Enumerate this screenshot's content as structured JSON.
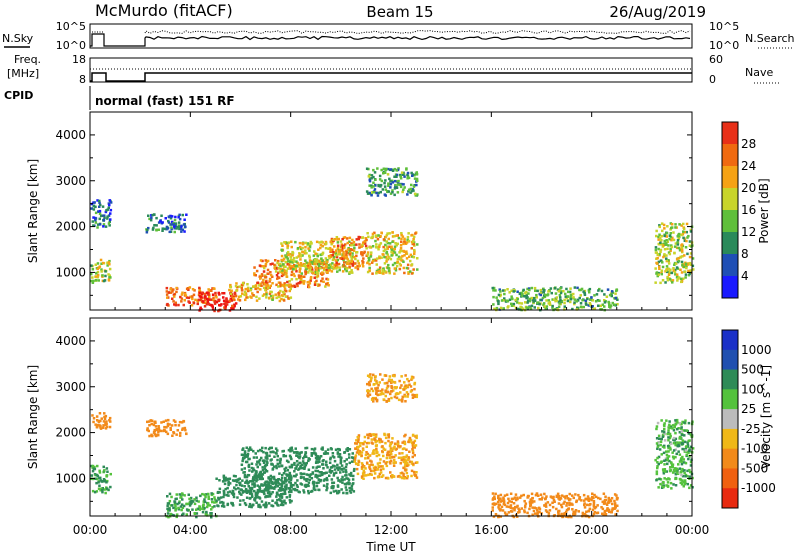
{
  "header": {
    "station": "McMurdo (fitACF)",
    "beam": "Beam 15",
    "date": "26/Aug/2019"
  },
  "noise_panel": {
    "left_label": "N.Sky",
    "right_label": "N.Search",
    "left_ticks": [
      "10^5",
      "10^0"
    ],
    "right_ticks": [
      "10^5",
      "10^0"
    ]
  },
  "freq_panel": {
    "left_label_line1": "Freq.",
    "left_label_line2": "[MHz]",
    "right_label": "Nave",
    "left_ticks": [
      "18",
      "8"
    ],
    "right_ticks": [
      "60",
      "0"
    ]
  },
  "cpid": {
    "label": "CPID",
    "text": "normal (fast) 151 RF"
  },
  "colors": {
    "power_scale": [
      "#1a1aff",
      "#1f4fb5",
      "#2a8a5a",
      "#5fbf3a",
      "#c8d42a",
      "#f5a214",
      "#f06a10",
      "#e83018",
      "#ee1010"
    ],
    "velocity_scale": [
      "#1a30c8",
      "#2050b0",
      "#2e8b57",
      "#54c23c",
      "#bcbcbc",
      "#f0b818",
      "#f28a1a",
      "#f06010",
      "#e82a10"
    ]
  },
  "chart_data": [
    {
      "type": "heatmap",
      "name": "Power",
      "ylabel": "Slant Range [km]",
      "yticks": [
        1000,
        2000,
        3000,
        4000
      ],
      "ylim": [
        180,
        4500
      ],
      "xlim": [
        0,
        24
      ],
      "colorbar_label": "Power [dB]",
      "colorbar_ticks": [
        "4",
        "8",
        "12",
        "16",
        "20",
        "24",
        "28"
      ],
      "colorbar_range": [
        0,
        30
      ],
      "patches": [
        {
          "x": [
            0.0,
            0.8
          ],
          "y": [
            800,
            1300
          ],
          "v": 14
        },
        {
          "x": [
            0.0,
            0.8
          ],
          "y": [
            2000,
            2600
          ],
          "v": 6
        },
        {
          "x": [
            2.2,
            3.8
          ],
          "y": [
            1900,
            2300
          ],
          "v": 7
        },
        {
          "x": [
            3.0,
            5.0
          ],
          "y": [
            300,
            700
          ],
          "v": 22
        },
        {
          "x": [
            4.3,
            5.8
          ],
          "y": [
            180,
            600
          ],
          "v": 28
        },
        {
          "x": [
            5.5,
            8.0
          ],
          "y": [
            400,
            800
          ],
          "v": 18
        },
        {
          "x": [
            6.5,
            9.5
          ],
          "y": [
            700,
            1300
          ],
          "v": 20
        },
        {
          "x": [
            7.5,
            10.5
          ],
          "y": [
            1000,
            1700
          ],
          "v": 15
        },
        {
          "x": [
            9.5,
            11.0
          ],
          "y": [
            1100,
            1800
          ],
          "v": 20
        },
        {
          "x": [
            11.0,
            13.0
          ],
          "y": [
            1000,
            1900
          ],
          "v": 16
        },
        {
          "x": [
            11.0,
            13.0
          ],
          "y": [
            2700,
            3300
          ],
          "v": 9
        },
        {
          "x": [
            16.0,
            21.0
          ],
          "y": [
            200,
            700
          ],
          "v": 11
        },
        {
          "x": [
            22.5,
            24.0
          ],
          "y": [
            800,
            2100
          ],
          "v": 14
        }
      ]
    },
    {
      "type": "heatmap",
      "name": "Velocity",
      "ylabel": "Slant Range [km]",
      "xlabel": "Time UT",
      "yticks": [
        1000,
        2000,
        3000,
        4000
      ],
      "ylim": [
        180,
        4500
      ],
      "xlim": [
        0,
        24
      ],
      "xticks": [
        "00:00",
        "04:00",
        "08:00",
        "12:00",
        "16:00",
        "20:00",
        "00:00"
      ],
      "colorbar_label": "Velocity [m s^-1]",
      "colorbar_ticks": [
        "1000",
        "500",
        "100",
        "25",
        "-25",
        "-100",
        "-500",
        "-1000"
      ],
      "patches": [
        {
          "x": [
            0.0,
            0.8
          ],
          "y": [
            700,
            1300
          ],
          "v": 100
        },
        {
          "x": [
            0.0,
            0.8
          ],
          "y": [
            2100,
            2450
          ],
          "v": -300
        },
        {
          "x": [
            2.2,
            3.8
          ],
          "y": [
            1950,
            2300
          ],
          "v": -400
        },
        {
          "x": [
            3.0,
            5.0
          ],
          "y": [
            180,
            700
          ],
          "v": 100
        },
        {
          "x": [
            5.0,
            8.0
          ],
          "y": [
            400,
            1100
          ],
          "v": 200
        },
        {
          "x": [
            6.0,
            10.5
          ],
          "y": [
            700,
            1700
          ],
          "v": 200
        },
        {
          "x": [
            10.5,
            13.0
          ],
          "y": [
            1000,
            2000
          ],
          "v": -100
        },
        {
          "x": [
            11.0,
            13.0
          ],
          "y": [
            2700,
            3300
          ],
          "v": -100
        },
        {
          "x": [
            16.0,
            21.0
          ],
          "y": [
            180,
            700
          ],
          "v": -400
        },
        {
          "x": [
            22.5,
            24.0
          ],
          "y": [
            800,
            2300
          ],
          "v": 80
        }
      ]
    }
  ]
}
